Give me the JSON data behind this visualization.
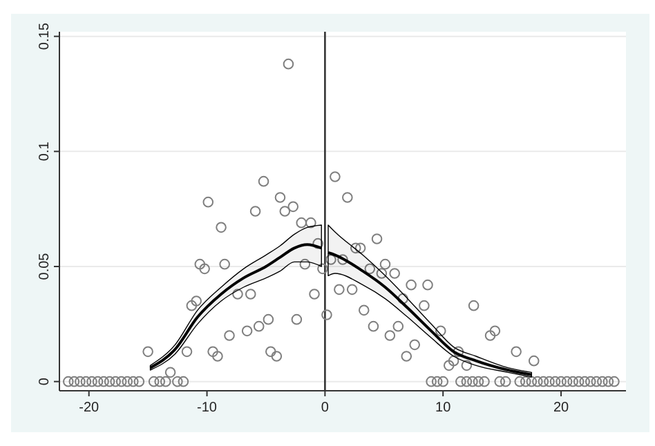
{
  "chart_data": {
    "type": "scatter",
    "xlim": [
      -22.5,
      25.5
    ],
    "ylim": [
      -0.004,
      0.152
    ],
    "xticks": [
      -20,
      -10,
      0,
      10,
      20
    ],
    "yticks": [
      0,
      0.05,
      0.1,
      0.15
    ],
    "grid": "y",
    "ref_lines": [
      {
        "axis": "x",
        "value": 0,
        "color": "#333333"
      }
    ],
    "series": [
      {
        "marker": "circle",
        "color": "#7f7f7f",
        "x": [
          -15.0,
          -13.1,
          -11.7,
          -11.3,
          -10.9,
          -10.6,
          -10.2,
          -9.9,
          -9.5,
          -9.1,
          -8.8,
          -8.5,
          -8.1,
          -7.4,
          -6.6,
          -6.3,
          -5.9,
          -5.6,
          -5.2,
          -4.8,
          -4.6,
          -4.1,
          -3.8,
          -3.4,
          -3.1,
          -2.7,
          -2.4,
          -2.0,
          -1.7,
          -1.2,
          -0.9,
          -0.6,
          -0.2,
          0.15,
          0.5,
          0.85,
          1.2,
          1.5,
          1.9,
          2.3,
          2.6,
          3.0,
          3.3,
          3.8,
          4.1,
          4.4,
          4.8,
          5.1,
          5.5,
          5.9,
          6.2,
          6.6,
          6.9,
          7.3,
          7.6,
          8.4,
          8.7,
          9.8,
          10.5,
          10.9,
          11.3,
          12.0,
          12.6,
          14.0,
          14.4,
          16.2,
          17.7,
          -21.75,
          -21.25,
          -20.75,
          -20.25,
          -19.75,
          -19.25,
          -18.75,
          -18.25,
          -17.75,
          -17.25,
          -16.75,
          -16.25,
          -15.75,
          -14.5,
          -14.0,
          -13.5,
          -12.5,
          -12.0,
          9.0,
          9.5,
          10.0,
          11.5,
          12.0,
          12.5,
          13.0,
          13.5,
          14.8,
          15.3,
          16.5,
          17.0,
          17.5,
          18.0,
          18.5,
          19.0,
          19.5,
          20.0,
          20.5,
          21.0,
          21.5,
          22.0,
          22.5,
          23.0,
          23.5,
          24.0,
          24.5
        ],
        "values": [
          0.013,
          0.004,
          0.013,
          0.033,
          0.035,
          0.051,
          0.049,
          0.078,
          0.013,
          0.011,
          0.067,
          0.051,
          0.02,
          0.038,
          0.022,
          0.038,
          0.074,
          0.024,
          0.087,
          0.027,
          0.013,
          0.011,
          0.08,
          0.074,
          0.138,
          0.076,
          0.027,
          0.069,
          0.051,
          0.069,
          0.038,
          0.06,
          0.049,
          0.029,
          0.053,
          0.089,
          0.04,
          0.053,
          0.08,
          0.04,
          0.058,
          0.058,
          0.031,
          0.049,
          0.024,
          0.062,
          0.047,
          0.051,
          0.02,
          0.047,
          0.024,
          0.036,
          0.011,
          0.042,
          0.016,
          0.033,
          0.042,
          0.022,
          0.007,
          0.009,
          0.013,
          0.007,
          0.033,
          0.02,
          0.022,
          0.013,
          0.009,
          0,
          0,
          0,
          0,
          0,
          0,
          0,
          0,
          0,
          0,
          0,
          0,
          0,
          0,
          0,
          0,
          0,
          0,
          0,
          0,
          0,
          0,
          0,
          0,
          0,
          0,
          0,
          0,
          0,
          0,
          0,
          0,
          0,
          0,
          0,
          0,
          0,
          0,
          0,
          0,
          0,
          0,
          0,
          0,
          0
        ]
      },
      {
        "type": "line",
        "color": "#000000",
        "x": [
          -14.8,
          -12.7,
          -10.8,
          -8.8,
          -6.9,
          -5.0,
          -3.8,
          -2.6,
          -1.5,
          -0.3
        ],
        "values": [
          0.006,
          0.014,
          0.028,
          0.038,
          0.045,
          0.05,
          0.054,
          0.058,
          0.0595,
          0.058
        ],
        "lower": [
          0.005,
          0.012,
          0.025,
          0.035,
          0.041,
          0.045,
          0.048,
          0.052,
          0.052,
          0.05
        ],
        "upper": [
          0.007,
          0.016,
          0.031,
          0.041,
          0.049,
          0.055,
          0.059,
          0.064,
          0.067,
          0.068
        ]
      },
      {
        "type": "line",
        "color": "#000000",
        "x": [
          0.27,
          0.85,
          3.2,
          5.1,
          7.0,
          9.0,
          10.9,
          12.8,
          15.5,
          17.5
        ],
        "values": [
          0.056,
          0.055,
          0.048,
          0.041,
          0.032,
          0.022,
          0.013,
          0.009,
          0.005,
          0.003
        ],
        "lower": [
          0.046,
          0.047,
          0.042,
          0.036,
          0.028,
          0.019,
          0.011,
          0.007,
          0.004,
          0.002
        ],
        "upper": [
          0.068,
          0.065,
          0.055,
          0.046,
          0.036,
          0.025,
          0.015,
          0.011,
          0.006,
          0.004
        ]
      }
    ]
  }
}
